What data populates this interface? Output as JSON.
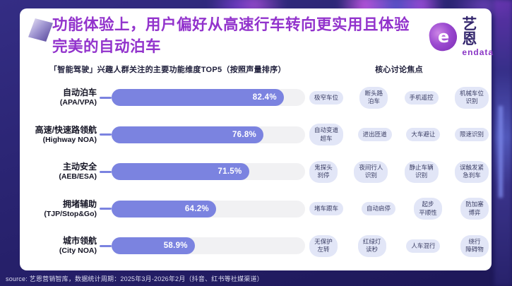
{
  "header": {
    "title_line1": "功能体验上，用户偏好从高速行车转向更实用且体验",
    "title_line2": "完美的自动泊车",
    "brand": {
      "icon": "endata-blob-icon",
      "icon_letter": "e",
      "name": "艺恩",
      "subname": "endata"
    }
  },
  "chart_data": {
    "type": "bar",
    "orientation": "horizontal",
    "title": "「智能驾驶」兴趣人群关注的主要功能维度TOP5（按照声量排序）",
    "categories_zh": [
      "自动泊车",
      "高速/快速路领航",
      "主动安全",
      "拥堵辅助",
      "城市领航"
    ],
    "categories_en": [
      "(APA/VPA)",
      "(Highway NOA)",
      "(AEB/ESA)",
      "(TJP/Stop&Go)",
      "(City NOA)"
    ],
    "values": [
      82.4,
      76.8,
      71.5,
      64.2,
      58.9
    ],
    "value_labels": [
      "82.4%",
      "76.8%",
      "71.5%",
      "64.2%",
      "58.9%"
    ],
    "bar_fill_display_pct": [
      89,
      78.5,
      71,
      54,
      43
    ],
    "bar_color": "#7b83e0",
    "track_color": "#f1f1f3",
    "xlim": [
      0,
      100
    ],
    "legend": "none",
    "grid": false
  },
  "focus": {
    "title": "核心讨论焦点",
    "rows": [
      [
        "极窄车位",
        "断头路\n泊车",
        "手机遥控",
        "机械车位\n识别"
      ],
      [
        "自动变道\n超车",
        "进出匝道",
        "大车避让",
        "限速识别"
      ],
      [
        "鬼探头\n刹停",
        "夜间行人\n识别",
        "静止车辆\n识别",
        "误触发紧\n急刹车"
      ],
      [
        "堵车跟车",
        "自动启停",
        "起步\n平顺性",
        "防加塞\n博弈"
      ],
      [
        "无保护\n左转",
        "红绿灯\n读秒",
        "人车混行",
        "绕行\n障碍物"
      ]
    ]
  },
  "footer": {
    "source": "source: 艺恩营销智库，数据统计周期：2025年3月-2026年2月（抖音、红书等社媒渠道）"
  }
}
